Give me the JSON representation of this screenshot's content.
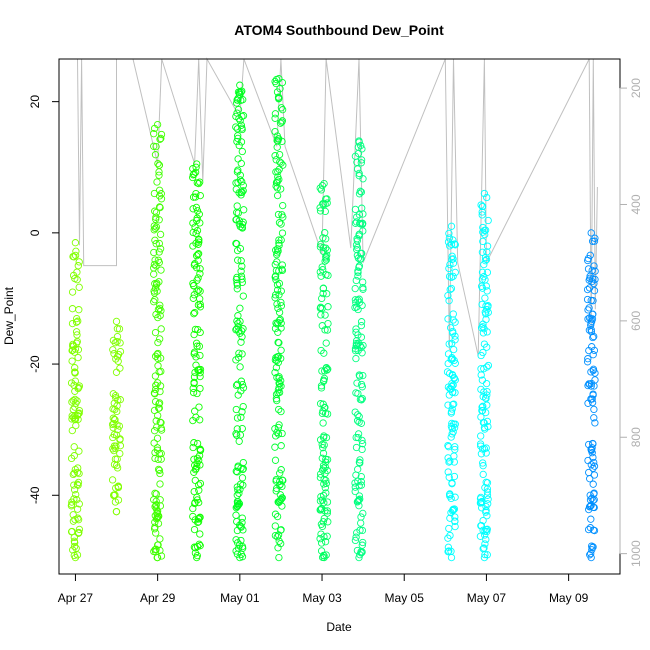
{
  "chart_data": {
    "type": "scatter",
    "title": "ATOM4 Southbound Dew_Point",
    "xlabel": "Date",
    "ylabel": "Dew_Point",
    "x_ticks": [
      "Apr 27",
      "Apr 29",
      "May 01",
      "May 03",
      "May 05",
      "May 07",
      "May 09"
    ],
    "y_ticks": [
      "-40",
      "-20",
      "0",
      "20"
    ],
    "y2_ticks": [
      "200",
      "400",
      "600",
      "800",
      "1000"
    ],
    "xlim_days": [
      26.6,
      40.25
    ],
    "ylim": [
      -52,
      26.5
    ],
    "y2lim_reversed": [
      1035,
      150
    ],
    "marker": "open-circle",
    "color_scale": "date (yellow-green to blue)",
    "series": [
      {
        "x_day": 27.0,
        "y_min": -49.5,
        "y_max": -1.5,
        "color": "#80ff00"
      },
      {
        "x_day": 28.0,
        "y_min": -42.5,
        "y_max": -13.5,
        "color": "#80ff00"
      },
      {
        "x_day": 29.0,
        "y_min": -49.5,
        "y_max": 16.5,
        "color": "#40ff00"
      },
      {
        "x_day": 29.95,
        "y_min": -49.5,
        "y_max": 10.5,
        "color": "#10ff00"
      },
      {
        "x_day": 31.0,
        "y_min": -49.5,
        "y_max": 22.5,
        "color": "#00ff20"
      },
      {
        "x_day": 31.95,
        "y_min": -49.5,
        "y_max": 23.5,
        "color": "#00ff30"
      },
      {
        "x_day": 33.05,
        "y_min": -49.5,
        "y_max": 7.5,
        "color": "#00ff60"
      },
      {
        "x_day": 33.9,
        "y_min": -49.5,
        "y_max": 14.0,
        "color": "#00ff80"
      },
      {
        "x_day": 36.15,
        "y_min": -49.5,
        "y_max": 1.0,
        "color": "#00ffff"
      },
      {
        "x_day": 36.95,
        "y_min": -49.5,
        "y_max": 6.0,
        "color": "#00ffff"
      },
      {
        "x_day": 39.55,
        "y_min": -49.5,
        "y_max": 0.0,
        "color": "#0090ff"
      }
    ],
    "secondary_line": {
      "name": "",
      "color": "#c0c0c0",
      "points": [
        {
          "x_day": 27.05,
          "y2": 150
        },
        {
          "x_day": 27.1,
          "y2": 470
        },
        {
          "x_day": 27.15,
          "y2": 150
        },
        {
          "x_day": 27.2,
          "y2": 505
        },
        {
          "x_day": 28.0,
          "y2": 505
        },
        {
          "x_day": 28.0,
          "y2": 150
        },
        {
          "x_day": 28.4,
          "y2": 150
        },
        {
          "x_day": 29.0,
          "y2": 330
        },
        {
          "x_day": 29.1,
          "y2": 150
        },
        {
          "x_day": 29.9,
          "y2": 330
        },
        {
          "x_day": 30.0,
          "y2": 150
        },
        {
          "x_day": 30.1,
          "y2": 360
        },
        {
          "x_day": 30.2,
          "y2": 150
        },
        {
          "x_day": 31.0,
          "y2": 250
        },
        {
          "x_day": 31.1,
          "y2": 150
        },
        {
          "x_day": 31.9,
          "y2": 300
        },
        {
          "x_day": 32.0,
          "y2": 150
        },
        {
          "x_day": 32.1,
          "y2": 300
        },
        {
          "x_day": 33.0,
          "y2": 485
        },
        {
          "x_day": 33.1,
          "y2": 150
        },
        {
          "x_day": 33.7,
          "y2": 475
        },
        {
          "x_day": 33.9,
          "y2": 150
        },
        {
          "x_day": 34.0,
          "y2": 500
        },
        {
          "x_day": 36.0,
          "y2": 150
        },
        {
          "x_day": 36.1,
          "y2": 650
        },
        {
          "x_day": 36.2,
          "y2": 150
        },
        {
          "x_day": 36.3,
          "y2": 500
        },
        {
          "x_day": 36.8,
          "y2": 660
        },
        {
          "x_day": 36.95,
          "y2": 150
        },
        {
          "x_day": 37.0,
          "y2": 500
        },
        {
          "x_day": 39.5,
          "y2": 150
        },
        {
          "x_day": 39.55,
          "y2": 610
        },
        {
          "x_day": 39.6,
          "y2": 150
        },
        {
          "x_day": 39.65,
          "y2": 580
        },
        {
          "x_day": 39.7,
          "y2": 370
        }
      ]
    }
  }
}
